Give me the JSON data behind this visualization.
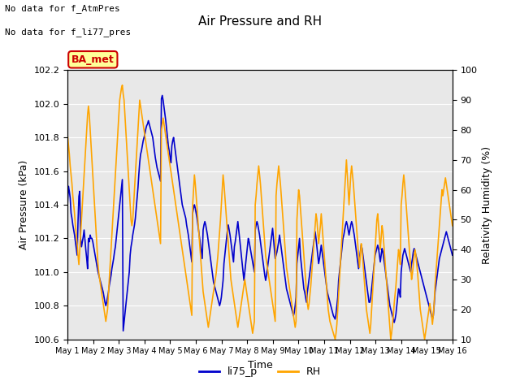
{
  "title": "Air Pressure and RH",
  "xlabel": "Time",
  "ylabel_left": "Air Pressure (kPa)",
  "ylabel_right": "Relativity Humidity (%)",
  "note1": "No data for f_AtmPres",
  "note2": "No data for f_li77_pres",
  "legend_label1": "li75_p",
  "legend_label2": "RH",
  "color_pressure": "#0000cc",
  "color_rh": "#ffa500",
  "ylim_left": [
    100.6,
    102.2
  ],
  "ylim_right": [
    10,
    100
  ],
  "yticks_left": [
    100.6,
    100.8,
    101.0,
    101.2,
    101.4,
    101.6,
    101.8,
    102.0,
    102.2
  ],
  "yticks_right": [
    10,
    20,
    30,
    40,
    50,
    60,
    70,
    80,
    90,
    100
  ],
  "xtick_labels": [
    "May 1",
    "May 2",
    "May 3",
    "May 4",
    "May 5",
    "May 6",
    "May 7",
    "May 8",
    "May 9",
    "May 10",
    "May 11",
    "May 12",
    "May 13",
    "May 14",
    "May 15",
    "May 16"
  ],
  "ba_met_label": "BA_met",
  "ba_met_color": "#cc0000",
  "ba_met_bg": "#ffff99",
  "background_color": "#e8e8e8",
  "pressure_data": [
    101.41,
    101.51,
    101.48,
    101.44,
    101.35,
    101.32,
    101.28,
    101.25,
    101.22,
    101.18,
    101.14,
    101.1,
    101.3,
    101.45,
    101.48,
    101.2,
    101.15,
    101.18,
    101.21,
    101.25,
    101.19,
    101.13,
    101.08,
    101.02,
    101.2,
    101.18,
    101.22,
    101.2,
    101.2,
    101.18,
    101.15,
    101.12,
    101.09,
    101.06,
    101.03,
    101.0,
    100.98,
    100.96,
    100.94,
    100.92,
    100.9,
    100.88,
    100.85,
    100.82,
    100.8,
    100.82,
    100.85,
    100.88,
    100.92,
    100.95,
    100.98,
    101.02,
    101.05,
    101.08,
    101.12,
    101.15,
    101.2,
    101.25,
    101.3,
    101.35,
    101.4,
    101.45,
    101.5,
    101.55,
    100.65,
    100.7,
    100.75,
    100.8,
    100.85,
    100.9,
    100.95,
    101.0,
    101.1,
    101.15,
    101.18,
    101.22,
    101.25,
    101.28,
    101.32,
    101.38,
    101.44,
    101.5,
    101.58,
    101.65,
    101.7,
    101.72,
    101.75,
    101.78,
    101.8,
    101.82,
    101.85,
    101.87,
    101.88,
    101.9,
    101.88,
    101.86,
    101.84,
    101.82,
    101.8,
    101.76,
    101.72,
    101.68,
    101.65,
    101.62,
    101.6,
    101.58,
    101.56,
    101.54,
    102.03,
    102.05,
    102.02,
    101.98,
    101.94,
    101.9,
    101.85,
    101.8,
    101.75,
    101.72,
    101.68,
    101.65,
    101.75,
    101.78,
    101.8,
    101.76,
    101.72,
    101.68,
    101.64,
    101.6,
    101.56,
    101.52,
    101.48,
    101.44,
    101.4,
    101.38,
    101.36,
    101.34,
    101.32,
    101.28,
    101.25,
    101.22,
    101.18,
    101.14,
    101.1,
    101.06,
    101.35,
    101.38,
    101.4,
    101.38,
    101.35,
    101.32,
    101.28,
    101.24,
    101.2,
    101.16,
    101.12,
    101.08,
    101.25,
    101.28,
    101.3,
    101.28,
    101.25,
    101.22,
    101.18,
    101.14,
    101.1,
    101.06,
    101.02,
    100.98,
    100.94,
    100.92,
    100.9,
    100.88,
    100.86,
    100.84,
    100.82,
    100.8,
    100.82,
    100.85,
    100.9,
    100.95,
    101.05,
    101.1,
    101.15,
    101.2,
    101.25,
    101.28,
    101.25,
    101.22,
    101.18,
    101.14,
    101.1,
    101.06,
    101.15,
    101.18,
    101.22,
    101.26,
    101.3,
    101.25,
    101.2,
    101.15,
    101.1,
    101.05,
    101.0,
    100.95,
    101.0,
    101.05,
    101.1,
    101.15,
    101.2,
    101.18,
    101.15,
    101.12,
    101.09,
    101.06,
    101.03,
    101.0,
    101.25,
    101.28,
    101.3,
    101.28,
    101.25,
    101.22,
    101.18,
    101.14,
    101.1,
    101.06,
    101.02,
    100.98,
    100.95,
    100.98,
    101.02,
    101.06,
    101.1,
    101.14,
    101.18,
    101.22,
    101.26,
    101.2,
    101.14,
    101.08,
    101.1,
    101.12,
    101.15,
    101.18,
    101.22,
    101.18,
    101.14,
    101.1,
    101.06,
    101.02,
    100.98,
    100.94,
    100.9,
    100.88,
    100.86,
    100.84,
    100.82,
    100.8,
    100.78,
    100.76,
    100.74,
    100.76,
    100.8,
    100.85,
    101.05,
    101.1,
    101.15,
    101.2,
    101.1,
    101.05,
    101.0,
    100.95,
    100.9,
    100.88,
    100.85,
    100.82,
    100.88,
    100.92,
    100.96,
    101.0,
    101.04,
    101.08,
    101.12,
    101.16,
    101.2,
    101.24,
    101.2,
    101.15,
    101.1,
    101.05,
    101.08,
    101.12,
    101.16,
    101.12,
    101.08,
    101.04,
    101.0,
    100.96,
    100.92,
    100.88,
    100.86,
    100.84,
    100.82,
    100.8,
    100.78,
    100.76,
    100.74,
    100.73,
    100.72,
    100.75,
    100.8,
    100.85,
    100.95,
    101.0,
    101.05,
    101.1,
    101.15,
    101.2,
    101.22,
    101.25,
    101.28,
    101.3,
    101.28,
    101.25,
    101.22,
    101.25,
    101.28,
    101.3,
    101.28,
    101.25,
    101.22,
    101.18,
    101.14,
    101.1,
    101.06,
    101.02,
    101.08,
    101.12,
    101.16,
    101.14,
    101.1,
    101.06,
    101.02,
    100.98,
    100.94,
    100.9,
    100.86,
    100.82,
    100.82,
    100.85,
    100.9,
    100.95,
    101.0,
    101.05,
    101.1,
    101.12,
    101.14,
    101.16,
    101.14,
    101.1,
    101.06,
    101.1,
    101.14,
    101.12,
    101.08,
    101.04,
    101.0,
    100.96,
    100.92,
    100.88,
    100.84,
    100.8,
    100.78,
    100.76,
    100.74,
    100.72,
    100.7,
    100.72,
    100.75,
    100.8,
    100.85,
    100.9,
    100.88,
    100.85,
    101.0,
    101.05,
    101.1,
    101.12,
    101.14,
    101.12,
    101.1,
    101.08,
    101.06,
    101.04,
    101.02,
    101.0,
    101.05,
    101.08,
    101.12,
    101.14,
    101.12,
    101.1,
    101.08,
    101.06,
    101.04,
    101.02,
    101.0,
    100.98,
    100.96,
    100.94,
    100.92,
    100.9,
    100.88,
    100.86,
    100.84,
    100.82,
    100.8,
    100.78,
    100.76,
    100.74,
    100.72,
    100.74,
    100.8,
    100.88,
    100.92,
    100.96,
    101.0,
    101.04,
    101.08,
    101.1,
    101.12,
    101.14,
    101.16,
    101.18,
    101.2,
    101.22,
    101.24,
    101.22,
    101.2,
    101.18,
    101.16,
    101.14,
    101.12,
    101.1
  ],
  "rh_data": [
    78,
    75,
    72,
    68,
    65,
    62,
    58,
    55,
    52,
    48,
    45,
    42,
    38,
    35,
    40,
    45,
    50,
    55,
    60,
    65,
    70,
    75,
    80,
    85,
    88,
    85,
    80,
    75,
    70,
    65,
    60,
    55,
    50,
    45,
    40,
    35,
    32,
    30,
    28,
    26,
    24,
    22,
    20,
    18,
    16,
    18,
    20,
    25,
    30,
    35,
    40,
    45,
    50,
    55,
    60,
    65,
    70,
    75,
    80,
    85,
    90,
    92,
    94,
    95,
    92,
    90,
    85,
    80,
    75,
    70,
    65,
    60,
    55,
    50,
    48,
    50,
    55,
    60,
    65,
    70,
    75,
    80,
    85,
    90,
    88,
    86,
    84,
    82,
    80,
    78,
    76,
    74,
    72,
    70,
    68,
    66,
    64,
    62,
    60,
    58,
    56,
    54,
    52,
    50,
    48,
    46,
    44,
    42,
    80,
    82,
    84,
    82,
    80,
    78,
    76,
    74,
    72,
    70,
    68,
    66,
    64,
    62,
    60,
    58,
    56,
    54,
    52,
    50,
    48,
    46,
    44,
    42,
    40,
    38,
    36,
    34,
    32,
    30,
    28,
    26,
    24,
    22,
    20,
    18,
    55,
    60,
    65,
    62,
    58,
    54,
    50,
    46,
    42,
    38,
    34,
    30,
    26,
    24,
    22,
    20,
    18,
    16,
    14,
    16,
    18,
    20,
    22,
    24,
    26,
    28,
    30,
    32,
    35,
    38,
    42,
    46,
    50,
    55,
    60,
    65,
    62,
    58,
    54,
    50,
    46,
    42,
    38,
    34,
    30,
    28,
    26,
    24,
    22,
    20,
    18,
    16,
    14,
    16,
    18,
    20,
    22,
    24,
    26,
    28,
    30,
    28,
    26,
    24,
    22,
    20,
    18,
    16,
    14,
    12,
    14,
    16,
    55,
    58,
    62,
    65,
    68,
    65,
    62,
    58,
    54,
    50,
    46,
    42,
    38,
    36,
    34,
    32,
    30,
    28,
    26,
    24,
    22,
    20,
    18,
    16,
    58,
    62,
    65,
    68,
    65,
    62,
    58,
    54,
    50,
    46,
    42,
    38,
    34,
    32,
    30,
    28,
    26,
    24,
    22,
    20,
    18,
    16,
    14,
    16,
    50,
    55,
    60,
    58,
    54,
    50,
    46,
    42,
    38,
    34,
    30,
    26,
    22,
    20,
    22,
    25,
    28,
    32,
    36,
    40,
    44,
    48,
    52,
    50,
    46,
    42,
    45,
    48,
    52,
    48,
    44,
    40,
    36,
    32,
    28,
    24,
    20,
    18,
    16,
    15,
    14,
    13,
    12,
    11,
    10,
    12,
    15,
    20,
    25,
    30,
    35,
    40,
    45,
    50,
    55,
    60,
    65,
    70,
    65,
    60,
    55,
    60,
    65,
    68,
    65,
    62,
    58,
    54,
    50,
    46,
    42,
    38,
    34,
    38,
    42,
    40,
    36,
    32,
    28,
    24,
    20,
    18,
    16,
    14,
    12,
    15,
    20,
    25,
    30,
    35,
    40,
    45,
    50,
    52,
    48,
    44,
    40,
    44,
    48,
    46,
    42,
    38,
    34,
    30,
    26,
    22,
    18,
    14,
    10,
    12,
    15,
    18,
    22,
    25,
    28,
    32,
    36,
    40,
    38,
    35,
    55,
    58,
    62,
    65,
    62,
    58,
    54,
    50,
    46,
    42,
    38,
    34,
    30,
    32,
    35,
    38,
    40,
    38,
    35,
    32,
    28,
    24,
    20,
    18,
    16,
    14,
    12,
    10,
    12,
    14,
    16,
    18,
    20,
    22,
    20,
    18,
    15,
    18,
    22,
    28,
    32,
    36,
    40,
    44,
    48,
    52,
    56,
    60,
    58,
    60,
    62,
    64,
    62,
    60,
    58,
    56,
    54,
    52,
    50,
    48
  ]
}
